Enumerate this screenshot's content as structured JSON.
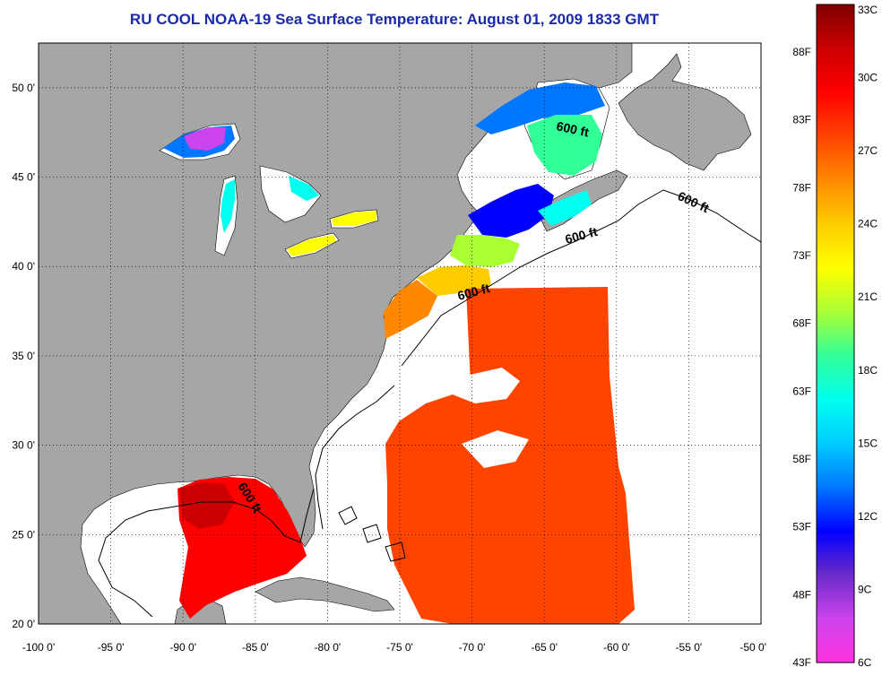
{
  "title": "RU COOL  NOAA-19  Sea Surface Temperature:  August 01, 2009 1833 GMT",
  "map": {
    "lon_range": [
      -100,
      -50
    ],
    "lat_range": [
      20,
      52.5
    ],
    "lon_ticks": [
      {
        "v": -100,
        "label": "-100 0'"
      },
      {
        "v": -95,
        "label": "-95 0'"
      },
      {
        "v": -90,
        "label": "-90 0'"
      },
      {
        "v": -85,
        "label": "-85 0'"
      },
      {
        "v": -80,
        "label": "-80 0'"
      },
      {
        "v": -75,
        "label": "-75 0'"
      },
      {
        "v": -70,
        "label": "-70 0'"
      },
      {
        "v": -65,
        "label": "-65 0'"
      },
      {
        "v": -60,
        "label": "-60 0'"
      },
      {
        "v": -55,
        "label": "-55 0'"
      },
      {
        "v": -50,
        "label": "-50 0'"
      }
    ],
    "lat_ticks": [
      {
        "v": 20,
        "label": "20 0'"
      },
      {
        "v": 25,
        "label": "25 0'"
      },
      {
        "v": 30,
        "label": "30 0'"
      },
      {
        "v": 35,
        "label": "35 0'"
      },
      {
        "v": 40,
        "label": "40 0'"
      },
      {
        "v": 45,
        "label": "45 0'"
      },
      {
        "v": 50,
        "label": "50 0'"
      }
    ],
    "grid": true,
    "contour_label": "600 ft",
    "colors": {
      "land": "#a6a6a6",
      "ocean": "#ffffff",
      "grid": "#000000"
    }
  },
  "colorbar": {
    "celsius_range": [
      6,
      33
    ],
    "celsius_labels": [
      "33C",
      "30C",
      "27C",
      "24C",
      "21C",
      "18C",
      "15C",
      "12C",
      "9C",
      "6C"
    ],
    "fahrenheit_labels": [
      "88F",
      "83F",
      "78F",
      "73F",
      "68F",
      "63F",
      "58F",
      "53F",
      "48F",
      "43F"
    ],
    "stops": [
      "#ff33dd",
      "#cc44ee",
      "#6a2ac8",
      "#0000ff",
      "#0077ff",
      "#00ccff",
      "#00ffee",
      "#33ff99",
      "#aaff33",
      "#ffff00",
      "#ffcc00",
      "#ff8800",
      "#ff4400",
      "#ff0000",
      "#cc0000",
      "#800000"
    ]
  }
}
